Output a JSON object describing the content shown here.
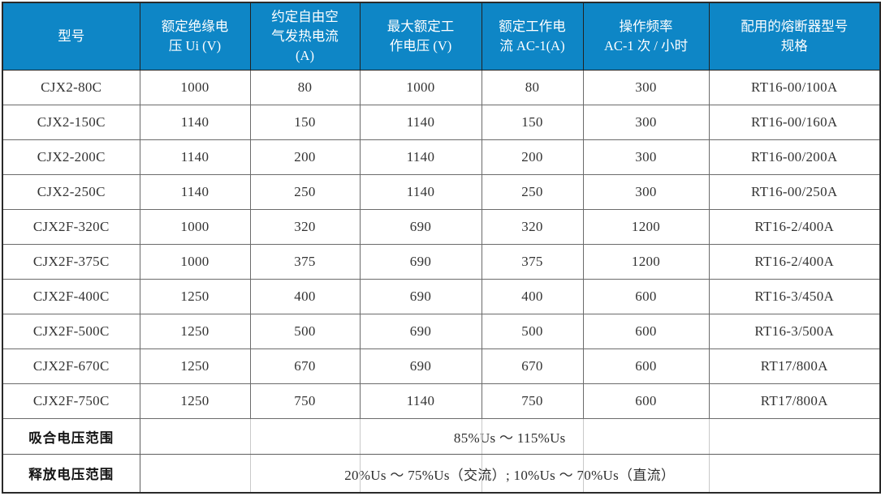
{
  "table": {
    "columns": [
      {
        "label": "型号"
      },
      {
        "label": "额定绝缘电\n压 Ui (V)"
      },
      {
        "label": "约定自由空\n气发热电流\n(A)"
      },
      {
        "label": "最大额定工\n作电压 (V)"
      },
      {
        "label": "额定工作电\n流 AC-1(A)"
      },
      {
        "label": "操作频率\nAC-1 次 / 小时"
      },
      {
        "label": "配用的熔断器型号\n规格"
      }
    ],
    "rows": [
      {
        "cells": [
          "CJX2-80C",
          "1000",
          "80",
          "1000",
          "80",
          "300",
          "RT16-00/100A"
        ]
      },
      {
        "cells": [
          "CJX2-150C",
          "1140",
          "150",
          "1140",
          "150",
          "300",
          "RT16-00/160A"
        ]
      },
      {
        "cells": [
          "CJX2-200C",
          "1140",
          "200",
          "1140",
          "200",
          "300",
          "RT16-00/200A"
        ]
      },
      {
        "cells": [
          "CJX2-250C",
          "1140",
          "250",
          "1140",
          "250",
          "300",
          "RT16-00/250A"
        ]
      },
      {
        "cells": [
          "CJX2F-320C",
          "1000",
          "320",
          "690",
          "320",
          "1200",
          "RT16-2/400A"
        ]
      },
      {
        "cells": [
          "CJX2F-375C",
          "1000",
          "375",
          "690",
          "375",
          "1200",
          "RT16-2/400A"
        ]
      },
      {
        "cells": [
          "CJX2F-400C",
          "1250",
          "400",
          "690",
          "400",
          "600",
          "RT16-3/450A"
        ]
      },
      {
        "cells": [
          "CJX2F-500C",
          "1250",
          "500",
          "690",
          "500",
          "600",
          "RT16-3/500A"
        ]
      },
      {
        "cells": [
          "CJX2F-670C",
          "1250",
          "670",
          "690",
          "670",
          "600",
          "RT17/800A"
        ]
      },
      {
        "cells": [
          "CJX2F-750C",
          "1250",
          "750",
          "1140",
          "750",
          "600",
          "RT17/800A"
        ]
      }
    ],
    "footer": [
      {
        "label": "吸合电压范围",
        "value": "85%Us ～ 115%Us"
      },
      {
        "label": "释放电压范围",
        "value": "20%Us ～ 75%Us（交流）; 10%Us ～ 70%Us（直流）"
      }
    ]
  },
  "colors": {
    "header_bg": "#0E86C6",
    "header_text": "#FFFFFF",
    "grid_line": "#6B6B6B",
    "outer_border": "#2A2A2A",
    "body_text": "#333333"
  }
}
